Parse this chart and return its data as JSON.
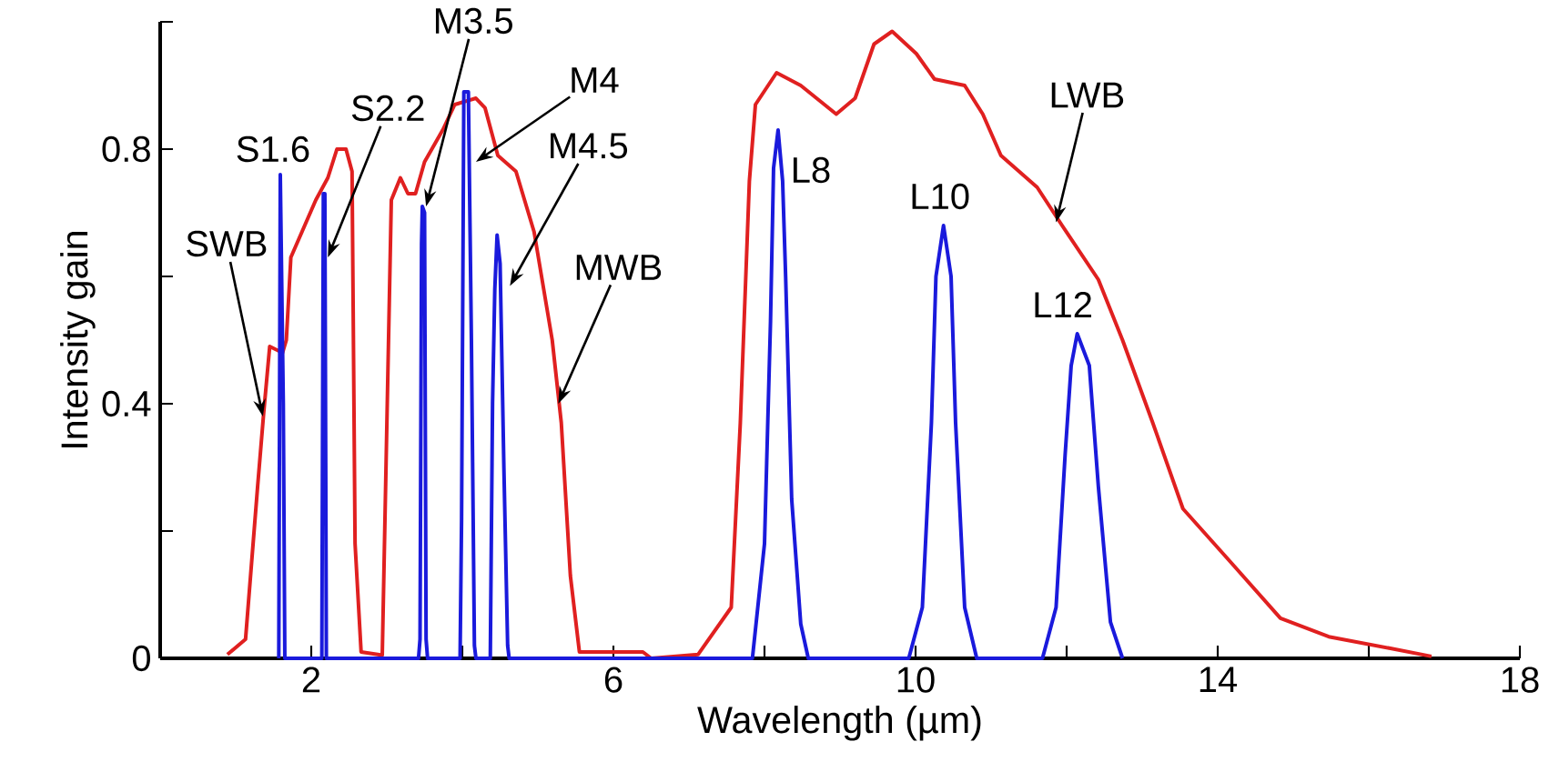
{
  "chart_data": {
    "type": "line",
    "xlabel": "Wavelength (µm)",
    "ylabel": "Intensity gain",
    "xlim": [
      0,
      18
    ],
    "ylim": [
      0,
      1
    ],
    "xticks": [
      2,
      {
        "value": 4,
        "label": null
      },
      6,
      {
        "value": 8,
        "label": null
      },
      10,
      {
        "value": 12,
        "label": null
      },
      14,
      {
        "value": 16,
        "label": null
      },
      18
    ],
    "yticks": [
      0,
      {
        "value": 0.2,
        "label": null
      },
      0.4,
      {
        "value": 0.6,
        "label": null
      },
      0.8,
      {
        "value": 1,
        "label": null
      }
    ],
    "series": [
      {
        "color": "#e02020",
        "x": [
          0.89,
          1.13,
          1.29,
          1.37,
          1.45,
          1.62,
          1.67,
          1.73,
          2.06,
          2.22,
          2.34,
          2.46,
          2.54,
          2.58,
          2.66,
          2.94,
          3.06,
          3.18,
          3.28,
          3.38,
          3.5,
          3.74,
          3.9,
          4.18,
          4.3,
          4.47,
          4.71,
          4.95,
          5.19,
          5.31,
          5.43,
          5.55,
          6.39,
          6.5,
          7.12,
          7.56,
          7.68,
          7.8,
          7.88,
          8.16,
          8.48,
          8.95,
          9.2,
          9.45,
          9.69,
          10.01,
          10.25,
          10.65,
          10.89,
          11.13,
          11.61,
          11.94,
          12.42,
          12.74,
          13.14,
          13.54,
          14.18,
          14.83,
          15.47,
          16.27,
          16.83
        ],
        "values": [
          0.006,
          0.03,
          0.27,
          0.385,
          0.49,
          0.48,
          0.5,
          0.63,
          0.72,
          0.755,
          0.8,
          0.8,
          0.765,
          0.18,
          0.01,
          0.005,
          0.72,
          0.755,
          0.73,
          0.73,
          0.78,
          0.83,
          0.87,
          0.88,
          0.865,
          0.79,
          0.765,
          0.67,
          0.5,
          0.37,
          0.13,
          0.01,
          0.01,
          0,
          0.006,
          0.08,
          0.37,
          0.75,
          0.87,
          0.92,
          0.9,
          0.855,
          0.88,
          0.965,
          0.985,
          0.95,
          0.91,
          0.9,
          0.855,
          0.79,
          0.74,
          0.68,
          0.595,
          0.5,
          0.37,
          0.235,
          0.15,
          0.063,
          0.034,
          0.016,
          0.003
        ]
      },
      {
        "color": "#1a1adc",
        "x": [
          1.57,
          1.59,
          1.63,
          1.65,
          2.14,
          2.16,
          2.18,
          2.2,
          3.42,
          3.44,
          3.46,
          3.47,
          3.5,
          3.52,
          3.54,
          3.97,
          3.99,
          4.02,
          4.08,
          4.12,
          4.16,
          4.18,
          4.37,
          4.4,
          4.43,
          4.46,
          4.5,
          4.55,
          4.6,
          4.62,
          7.84,
          8.0,
          8.08,
          8.12,
          8.18,
          8.24,
          8.28,
          8.36,
          8.48,
          8.58,
          9.91,
          10.09,
          10.21,
          10.27,
          10.37,
          10.47,
          10.53,
          10.65,
          10.81,
          11.68,
          11.86,
          11.98,
          12.06,
          12.14,
          12.3,
          12.42,
          12.58,
          12.74
        ],
        "values": [
          0,
          0.76,
          0.4,
          0,
          0,
          0.73,
          0.73,
          0,
          0,
          0.03,
          0.65,
          0.71,
          0.7,
          0.03,
          0,
          0,
          0.22,
          0.89,
          0.89,
          0.5,
          0.02,
          0,
          0,
          0.4,
          0.58,
          0.665,
          0.62,
          0.3,
          0.02,
          0,
          0,
          0.18,
          0.53,
          0.77,
          0.83,
          0.75,
          0.6,
          0.25,
          0.054,
          0,
          0,
          0.08,
          0.37,
          0.6,
          0.68,
          0.6,
          0.37,
          0.08,
          0,
          0,
          0.08,
          0.32,
          0.46,
          0.51,
          0.46,
          0.27,
          0.057,
          0
        ]
      }
    ],
    "annotations": [
      {
        "text": "SWB",
        "x": 1.36,
        "y": 0.38
      },
      {
        "text": "S1.6",
        "x": 1.59,
        "y": 0.76
      },
      {
        "text": "S2.2",
        "x": 2.22,
        "y": 0.63
      },
      {
        "text": "M3.5",
        "x": 3.52,
        "y": 0.71
      },
      {
        "text": "M4",
        "x": 4.18,
        "y": 0.78
      },
      {
        "text": "M4.5",
        "x": 4.63,
        "y": 0.585
      },
      {
        "text": "MWB",
        "x": 5.27,
        "y": 0.4
      },
      {
        "text": "L8",
        "x": 8.18,
        "y": 0.83
      },
      {
        "text": "L10",
        "x": 10.37,
        "y": 0.68
      },
      {
        "text": "L12",
        "x": 12.14,
        "y": 0.51
      },
      {
        "text": "LWB",
        "x": 11.86,
        "y": 0.685
      }
    ]
  }
}
